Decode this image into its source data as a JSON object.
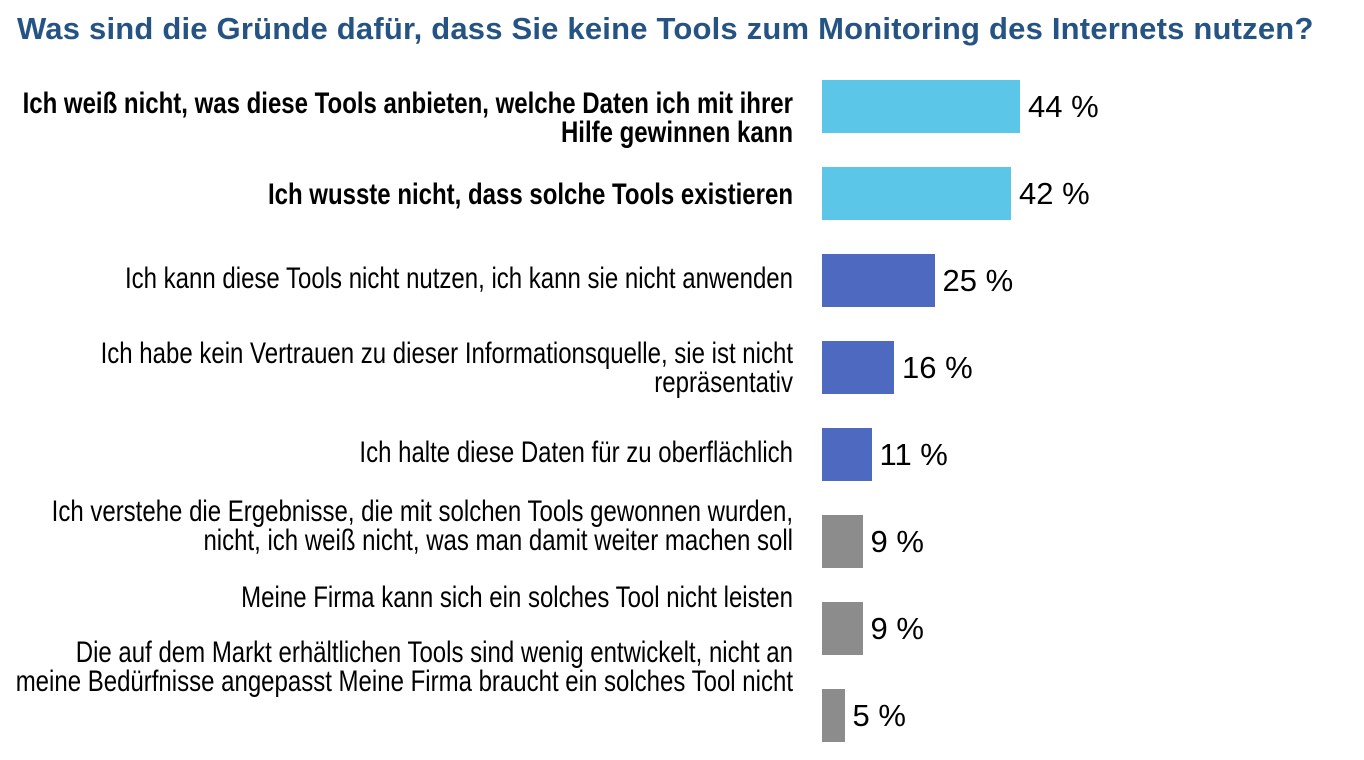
{
  "title": "Was sind die Gründe dafür, dass Sie keine Tools zum Monitoring des Internets nutzen?",
  "title_color": "#255484",
  "chart_data": {
    "type": "bar",
    "orientation": "horizontal",
    "title": "Was sind die Gründe dafür, dass Sie keine Tools zum Monitoring des Internets nutzen?",
    "xlabel": "",
    "ylabel": "",
    "xlim": [
      0,
      47
    ],
    "unit": "%",
    "grid": false,
    "legend": false,
    "categories": [
      [
        "Ich weiß nicht, was diese Tools anbieten, welche Daten ich mit ihrer",
        "Hilfe gewinnen kann"
      ],
      [
        "Ich wusste nicht, dass solche Tools existieren"
      ],
      [
        "Ich kann diese Tools nicht nutzen, ich kann sie nicht anwenden"
      ],
      [
        "Ich habe kein Vertrauen zu dieser Informationsquelle, sie ist nicht",
        "repräsentativ"
      ],
      [
        "Ich halte diese Daten für zu oberflächlich"
      ],
      [
        "Ich verstehe die Ergebnisse, die mit solchen Tools gewonnen wurden,",
        "nicht, ich weiß nicht, was man damit weiter machen soll"
      ],
      [
        "Meine Firma kann sich ein solches Tool nicht leisten"
      ],
      [
        "Die auf dem Markt erhältlichen Tools sind wenig entwickelt, nicht an",
        "meine Bedürfnisse angepasst Meine Firma braucht ein solches Tool nicht"
      ]
    ],
    "values": [
      44,
      42,
      25,
      16,
      11,
      9,
      9,
      5
    ],
    "value_labels": [
      "44 %",
      "42 %",
      "25 %",
      "16 %",
      "11 %",
      "9 %",
      "9 %",
      "5 %"
    ],
    "bar_colors": [
      "#5BC6E8",
      "#5BC6E8",
      "#4D6AC0",
      "#4D6AC0",
      "#4D6AC0",
      "#8C8C8C",
      "#8C8C8C",
      "#8C8C8C"
    ],
    "bold_labels": [
      true,
      true,
      false,
      false,
      false,
      false,
      false,
      false
    ]
  }
}
